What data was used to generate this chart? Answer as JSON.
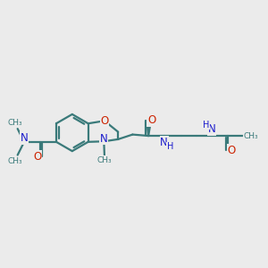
{
  "bg_color": "#ebebeb",
  "bond_color": "#3a7a7a",
  "nitrogen_color": "#1a1acc",
  "oxygen_color": "#cc2200",
  "line_width": 1.6,
  "font_size": 8.0,
  "figsize": [
    3.0,
    3.0
  ],
  "dpi": 100,
  "xlim": [
    0,
    10
  ],
  "ylim": [
    2,
    8
  ]
}
